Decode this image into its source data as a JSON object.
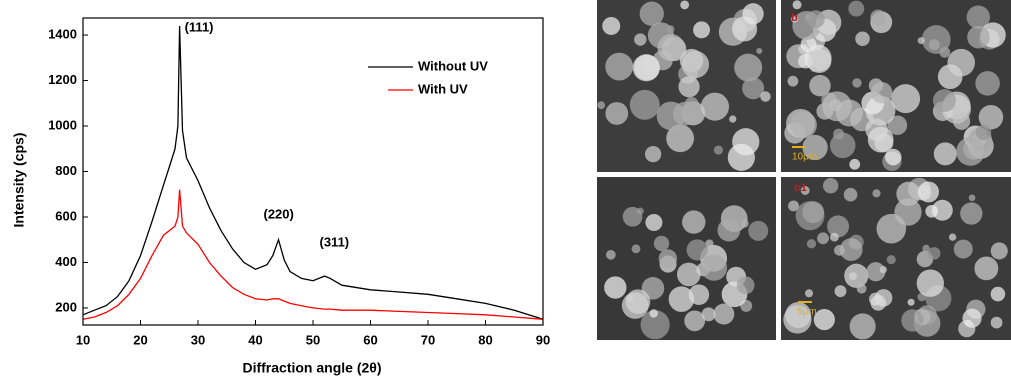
{
  "chart_data": {
    "type": "line",
    "xlabel": "Diffraction angle (2θ)",
    "ylabel": "Intensity (cps)",
    "annotations": [
      "(111)",
      "(220)",
      "(311)"
    ],
    "x": [
      10,
      12,
      14,
      16,
      18,
      20,
      22,
      24,
      25,
      26,
      26.5,
      26.8,
      27.3,
      28,
      30,
      32,
      34,
      36,
      38,
      40,
      42,
      43,
      44,
      45,
      46,
      48,
      50,
      52,
      53,
      55,
      60,
      65,
      70,
      75,
      80,
      85,
      90
    ],
    "series": [
      {
        "name": "Without UV",
        "color": "#000000",
        "values": [
          170,
          190,
          210,
          250,
          320,
          430,
          580,
          740,
          820,
          900,
          1000,
          1440,
          980,
          860,
          760,
          640,
          540,
          460,
          400,
          370,
          390,
          430,
          500,
          410,
          360,
          330,
          320,
          340,
          330,
          300,
          280,
          270,
          260,
          240,
          220,
          190,
          150
        ]
      },
      {
        "name": "With UV",
        "color": "#ff0000",
        "values": [
          150,
          160,
          180,
          210,
          260,
          330,
          430,
          520,
          540,
          560,
          600,
          720,
          560,
          530,
          480,
          400,
          340,
          290,
          260,
          240,
          235,
          240,
          240,
          230,
          220,
          210,
          200,
          195,
          195,
          190,
          190,
          185,
          180,
          175,
          170,
          160,
          150
        ]
      }
    ],
    "xlim": [
      10,
      90
    ],
    "ylim": [
      125,
      1475
    ],
    "xticks": [
      10,
      20,
      30,
      40,
      50,
      60,
      70,
      80,
      90
    ],
    "yticks": [
      200,
      400,
      600,
      800,
      1000,
      1200,
      1400
    ],
    "legend": "upper right"
  },
  "micrographs": [
    {
      "label": "b",
      "scale_bar": "10μm"
    },
    {
      "label": "b1",
      "scale_bar": "5μm"
    }
  ]
}
